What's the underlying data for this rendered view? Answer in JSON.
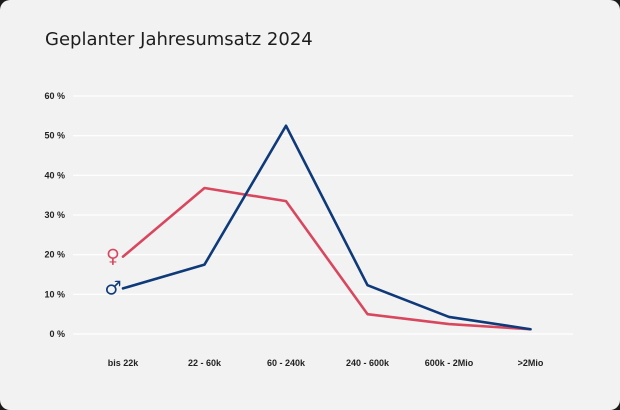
{
  "chart_data": {
    "type": "line",
    "title": "Geplanter Jahresumsatz 2024",
    "xlabel": "",
    "ylabel": "",
    "categories": [
      "bis 22k",
      "22 - 60k",
      "60 - 240k",
      "240 - 600k",
      "600k - 2Mio",
      ">2Mio"
    ],
    "yticks": [
      "0 %",
      "10 %",
      "20 %",
      "30 %",
      "40 %",
      "50 %",
      "60 %"
    ],
    "ylim": [
      0,
      60
    ],
    "grid": true,
    "legend": "inline-icons-left",
    "series": [
      {
        "symbol": "♀",
        "icon": "female-symbol-icon",
        "color": "#d9475f",
        "values": [
          19.5,
          36.8,
          33.5,
          5.0,
          2.5,
          1.2
        ]
      },
      {
        "symbol": "♂",
        "icon": "male-symbol-icon",
        "color": "#0f3a7a",
        "values": [
          11.5,
          17.5,
          52.5,
          12.3,
          4.3,
          1.2
        ]
      }
    ]
  }
}
